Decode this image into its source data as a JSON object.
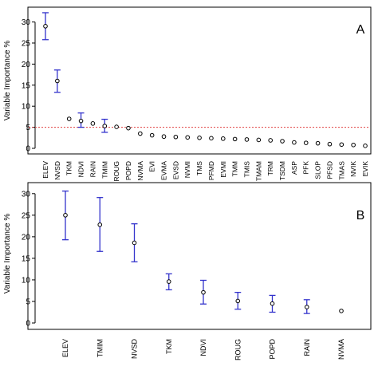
{
  "chart_data": [
    {
      "type": "scatter",
      "panel_label": "A",
      "ylabel": "Variable Importance %",
      "ylim": [
        0,
        32
      ],
      "yticks": [
        0,
        5,
        10,
        15,
        20,
        25,
        30
      ],
      "reference_line": 5,
      "reference_color": "#e04040",
      "error_bar_color": "#3333cc",
      "categories": [
        "ELEV",
        "NVSD",
        "TKM",
        "NDVI",
        "RAIN",
        "TMIM",
        "ROUG",
        "POPD",
        "NVMA",
        "EVI",
        "EVMA",
        "EVSD",
        "NVMI",
        "TMS",
        "PFMD",
        "EVMI",
        "TMM",
        "TMIS",
        "TMAM",
        "TRM",
        "TSDM",
        "ASP",
        "PFK",
        "SLOP",
        "PFSD",
        "TMAS",
        "NVIK",
        "EVIK"
      ],
      "values": [
        29,
        16,
        7,
        6.5,
        5.9,
        5.3,
        5.1,
        4.8,
        3.5,
        3.1,
        2.8,
        2.7,
        2.6,
        2.5,
        2.4,
        2.3,
        2.2,
        2.1,
        2.0,
        1.9,
        1.7,
        1.4,
        1.3,
        1.2,
        1.0,
        0.9,
        0.8,
        0.6
      ],
      "error_low": [
        25.8,
        13.3,
        null,
        5.0,
        null,
        3.8,
        null,
        null,
        null,
        null,
        null,
        null,
        null,
        null,
        null,
        null,
        null,
        null,
        null,
        null,
        null,
        null,
        null,
        null,
        null,
        null,
        null,
        null
      ],
      "error_high": [
        32.2,
        18.6,
        null,
        8.4,
        null,
        6.9,
        null,
        null,
        null,
        null,
        null,
        null,
        null,
        null,
        null,
        null,
        null,
        null,
        null,
        null,
        null,
        null,
        null,
        null,
        null,
        null,
        null,
        null
      ]
    },
    {
      "type": "scatter",
      "panel_label": "B",
      "ylabel": "Variable Importance %",
      "ylim": [
        0,
        32
      ],
      "yticks": [
        0,
        5,
        10,
        15,
        20,
        25,
        30
      ],
      "error_bar_color": "#3333cc",
      "categories": [
        "ELEV",
        "TMIM",
        "NVSD",
        "TKM",
        "NDVI",
        "ROUG",
        "POPD",
        "RAIN",
        "NVMA"
      ],
      "values": [
        25,
        22.8,
        18.6,
        9.6,
        7.1,
        5.1,
        4.5,
        3.7,
        2.8
      ],
      "error_low": [
        19.3,
        16.6,
        14.2,
        7.7,
        4.4,
        3.2,
        2.5,
        2.2,
        null
      ],
      "error_high": [
        30.6,
        29.1,
        23.0,
        11.4,
        9.9,
        7.1,
        6.4,
        5.4,
        null
      ]
    }
  ]
}
